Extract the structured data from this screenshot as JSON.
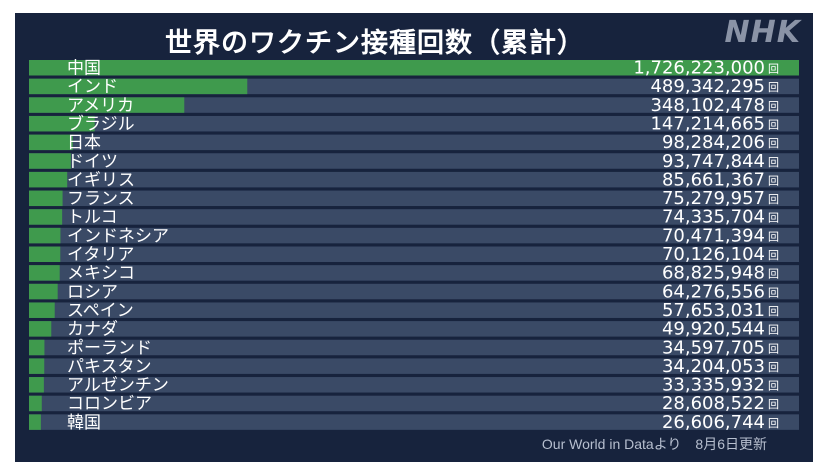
{
  "title": "世界のワクチン接種回数（累計）",
  "logo": "NHK",
  "source": "Our World in Dataより",
  "updated": "8月6日更新",
  "colors": {
    "background": "#17233d",
    "track": "#3a4a66",
    "bar": "#3f9a4d",
    "text": "#ffffff"
  },
  "chart_data": {
    "type": "bar",
    "orientation": "horizontal",
    "title": "世界のワクチン接種回数（累計）",
    "unit": "回",
    "categories": [
      "中国",
      "インド",
      "アメリカ",
      "ブラジル",
      "日本",
      "ドイツ",
      "イギリス",
      "フランス",
      "トルコ",
      "インドネシア",
      "イタリア",
      "メキシコ",
      "ロシア",
      "スペイン",
      "カナダ",
      "ポーランド",
      "パキスタン",
      "アルゼンチン",
      "コロンビア",
      "韓国"
    ],
    "values": [
      1726223000,
      489342295,
      348102478,
      147214665,
      98284206,
      93747844,
      85661367,
      75279957,
      74335704,
      70471394,
      70126104,
      68825948,
      64276556,
      57653031,
      49920544,
      34597705,
      34204053,
      33335932,
      28608522,
      26606744
    ],
    "value_labels": [
      "1,726,223,000",
      "489,342,295",
      "348,102,478",
      "147,214,665",
      "98,284,206",
      "93,747,844",
      "85,661,367",
      "75,279,957",
      "74,335,704",
      "70,471,394",
      "70,126,104",
      "68,825,948",
      "64,276,556",
      "57,653,031",
      "49,920,544",
      "34,597,705",
      "34,204,053",
      "33,335,932",
      "28,608,522",
      "26,606,744"
    ],
    "xlim": [
      0,
      1726223000
    ]
  }
}
